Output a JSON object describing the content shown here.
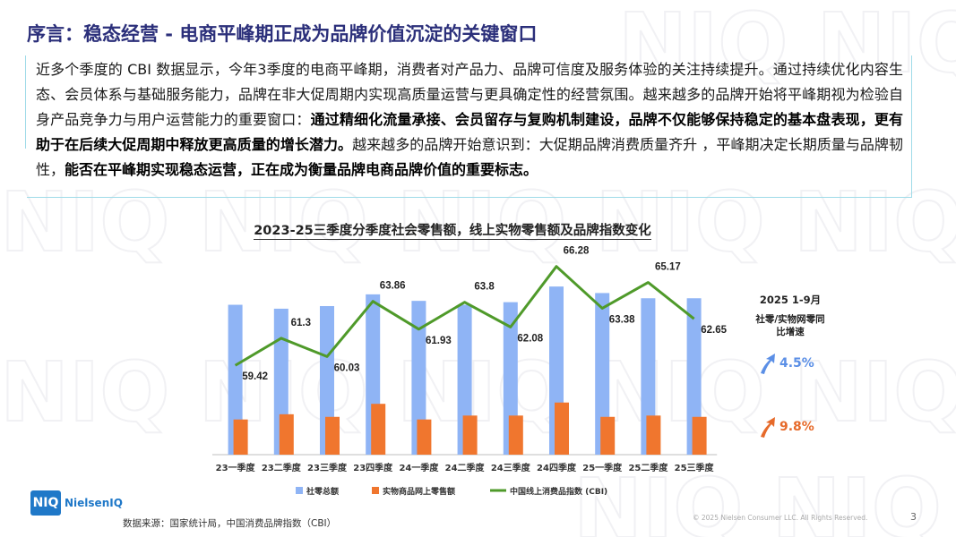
{
  "page": {
    "title": "序言：稳态经营 - 电商平峰期正成为品牌价值沉淀的关键窗口",
    "intro": {
      "part1": "近多个季度的 CBI 数据显示，今年3季度的电商平峰期，消费者对产品力、品牌可信度及服务体验的关注持续提升。通过持续优化内容生态、会员体系与基础服务能力，品牌在非大促周期内实现高质量运营与更具确定性的经营氛围。越来越多的品牌开始将平峰期视为检验自身产品竞争力与用户运营能力的重要窗口：",
      "bold1": "通过精细化流量承接、会员留存与复购机制建设，品牌不仅能够保持稳定的基本盘表现，更有助于在后续大促周期中释放更高质量的增长潜力。",
      "part2": "越来越多的品牌开始意识到：大促期品牌消费质量齐升 ，平峰期决定长期质量与品牌韧性，",
      "bold2": "能否在平峰期实现稳态运营，正在成为衡量品牌电商品牌价值的重要标志。"
    },
    "side_panel": {
      "title": "2025 1-9月",
      "subtitle_line1": "社零/实物网零同",
      "subtitle_line2": "比增速",
      "growth_retail": "4.5%",
      "growth_online": "9.8%"
    },
    "logo": {
      "mark": "NIQ",
      "text": "NielsenIQ"
    },
    "source": "数据来源：国家统计局，中国消费品牌指数（CBI）",
    "copyright": "© 2025 Nielsen Consumer LLC. All Rights Reserved.",
    "page_number": "3"
  },
  "colors": {
    "title": "#2b2f7a",
    "retail_bar": "#8fb4f5",
    "online_bar": "#f0762e",
    "cbi_line": "#4f9a2a",
    "up_blue": "#5b8fe6",
    "up_orange": "#e66a2a"
  },
  "chart_data": {
    "type": "bar",
    "title": "2023-25三季度分季度社会零售额，线上实物零售额及品牌指数变化",
    "categories": [
      "23一季度",
      "23二季度",
      "23三季度",
      "23四季度",
      "24一季度",
      "24二季度",
      "24三季度",
      "24四季度",
      "25一季度",
      "25二季度",
      "25三季度"
    ],
    "series": [
      {
        "name": "社零总额",
        "kind": "bar",
        "axis": "left",
        "values": [
          115000,
          112000,
          114000,
          123000,
          118000,
          115000,
          117000,
          129000,
          124000,
          120000,
          120000
        ]
      },
      {
        "name": "实物商品网上零售额",
        "kind": "bar",
        "axis": "left",
        "values": [
          27000,
          31000,
          29000,
          39000,
          27000,
          30000,
          30000,
          40000,
          29000,
          30000,
          29000
        ]
      },
      {
        "name": "中国线上消费品指数 (CBI)",
        "kind": "line",
        "axis": "right",
        "values": [
          59.42,
          61.3,
          60.03,
          63.86,
          61.93,
          63.8,
          62.08,
          66.28,
          63.38,
          65.17,
          62.65
        ],
        "labels": [
          "59.42",
          "61.3",
          "60.03",
          "63.86",
          "61.93",
          "63.8",
          "62.08",
          "66.28",
          "63.38",
          "65.17",
          "62.65"
        ]
      }
    ],
    "legend_position": "bottom"
  }
}
